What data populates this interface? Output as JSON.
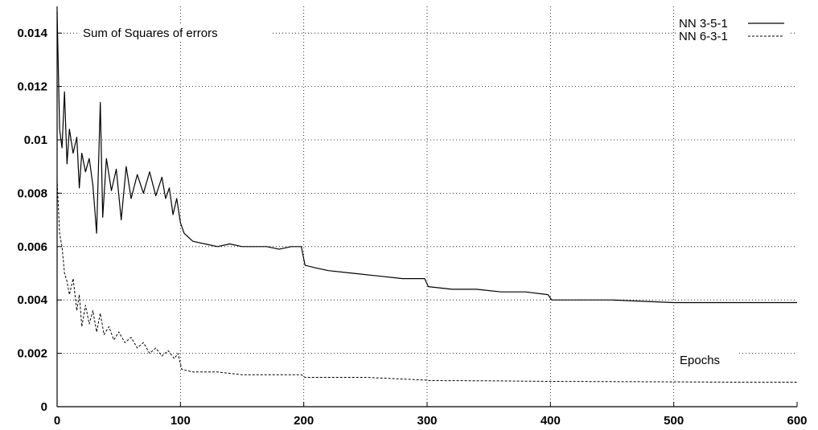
{
  "chart_data": {
    "type": "line",
    "title": "",
    "annotations": {
      "ylabel_text": "Sum of Squares of errors",
      "xlabel_text": "Epochs"
    },
    "xlim": [
      0,
      600
    ],
    "ylim": [
      0,
      0.015
    ],
    "x_ticks": [
      0,
      100,
      200,
      300,
      400,
      500,
      600
    ],
    "y_ticks": [
      0,
      0.002,
      0.004,
      0.006,
      0.008,
      0.01,
      0.012,
      0.014
    ],
    "x_tick_labels": [
      "0",
      "100",
      "200",
      "300",
      "400",
      "500",
      "600"
    ],
    "y_tick_labels": [
      "0",
      "0.002",
      "0.004",
      "0.006",
      "0.008",
      "0.01",
      "0.012",
      "0.014"
    ],
    "grid": true,
    "legend_position": "top-right",
    "series": [
      {
        "name": "NN 3-5-1",
        "style": "solid",
        "color": "#000000",
        "points": [
          [
            0,
            0.0148
          ],
          [
            2,
            0.0104
          ],
          [
            4,
            0.0097
          ],
          [
            6,
            0.0118
          ],
          [
            8,
            0.0091
          ],
          [
            10,
            0.0104
          ],
          [
            13,
            0.0095
          ],
          [
            16,
            0.0101
          ],
          [
            18,
            0.0082
          ],
          [
            20,
            0.0095
          ],
          [
            23,
            0.0088
          ],
          [
            26,
            0.0093
          ],
          [
            29,
            0.0083
          ],
          [
            32,
            0.0065
          ],
          [
            35,
            0.0114
          ],
          [
            37,
            0.0071
          ],
          [
            40,
            0.0093
          ],
          [
            44,
            0.0081
          ],
          [
            48,
            0.0089
          ],
          [
            52,
            0.007
          ],
          [
            56,
            0.009
          ],
          [
            60,
            0.0078
          ],
          [
            65,
            0.0087
          ],
          [
            70,
            0.008
          ],
          [
            75,
            0.0088
          ],
          [
            80,
            0.0079
          ],
          [
            85,
            0.0086
          ],
          [
            88,
            0.0078
          ],
          [
            91,
            0.0082
          ],
          [
            94,
            0.0072
          ],
          [
            97,
            0.0078
          ],
          [
            100,
            0.0069
          ],
          [
            103,
            0.0065
          ],
          [
            110,
            0.0062
          ],
          [
            120,
            0.0061
          ],
          [
            130,
            0.006
          ],
          [
            140,
            0.0061
          ],
          [
            150,
            0.006
          ],
          [
            160,
            0.006
          ],
          [
            170,
            0.006
          ],
          [
            180,
            0.0059
          ],
          [
            190,
            0.006
          ],
          [
            198,
            0.006
          ],
          [
            201,
            0.0053
          ],
          [
            210,
            0.0052
          ],
          [
            220,
            0.0051
          ],
          [
            240,
            0.005
          ],
          [
            260,
            0.0049
          ],
          [
            280,
            0.0048
          ],
          [
            298,
            0.0048
          ],
          [
            301,
            0.0045
          ],
          [
            320,
            0.0044
          ],
          [
            340,
            0.0044
          ],
          [
            360,
            0.0043
          ],
          [
            380,
            0.0043
          ],
          [
            398,
            0.0042
          ],
          [
            401,
            0.004
          ],
          [
            450,
            0.004
          ],
          [
            500,
            0.0039
          ],
          [
            550,
            0.0039
          ],
          [
            600,
            0.0039
          ]
        ]
      },
      {
        "name": "NN 6-3-1",
        "style": "dashed",
        "color": "#000000",
        "points": [
          [
            0,
            0.0085
          ],
          [
            2,
            0.0065
          ],
          [
            4,
            0.006
          ],
          [
            6,
            0.005
          ],
          [
            8,
            0.0047
          ],
          [
            10,
            0.0042
          ],
          [
            13,
            0.0048
          ],
          [
            16,
            0.0036
          ],
          [
            18,
            0.0042
          ],
          [
            20,
            0.003
          ],
          [
            23,
            0.0038
          ],
          [
            26,
            0.0031
          ],
          [
            29,
            0.0036
          ],
          [
            32,
            0.0028
          ],
          [
            35,
            0.0035
          ],
          [
            38,
            0.0027
          ],
          [
            42,
            0.003
          ],
          [
            46,
            0.0025
          ],
          [
            50,
            0.0028
          ],
          [
            55,
            0.0024
          ],
          [
            60,
            0.0026
          ],
          [
            65,
            0.0022
          ],
          [
            70,
            0.0024
          ],
          [
            75,
            0.002
          ],
          [
            80,
            0.0022
          ],
          [
            85,
            0.0019
          ],
          [
            90,
            0.0021
          ],
          [
            95,
            0.0018
          ],
          [
            98,
            0.002
          ],
          [
            101,
            0.0014
          ],
          [
            110,
            0.0013
          ],
          [
            130,
            0.0013
          ],
          [
            150,
            0.0012
          ],
          [
            170,
            0.0012
          ],
          [
            198,
            0.0012
          ],
          [
            201,
            0.0011
          ],
          [
            250,
            0.0011
          ],
          [
            298,
            0.001
          ],
          [
            301,
            0.00098
          ],
          [
            350,
            0.00097
          ],
          [
            400,
            0.00095
          ],
          [
            450,
            0.00094
          ],
          [
            500,
            0.00093
          ],
          [
            550,
            0.00092
          ],
          [
            600,
            0.00092
          ]
        ]
      }
    ]
  }
}
